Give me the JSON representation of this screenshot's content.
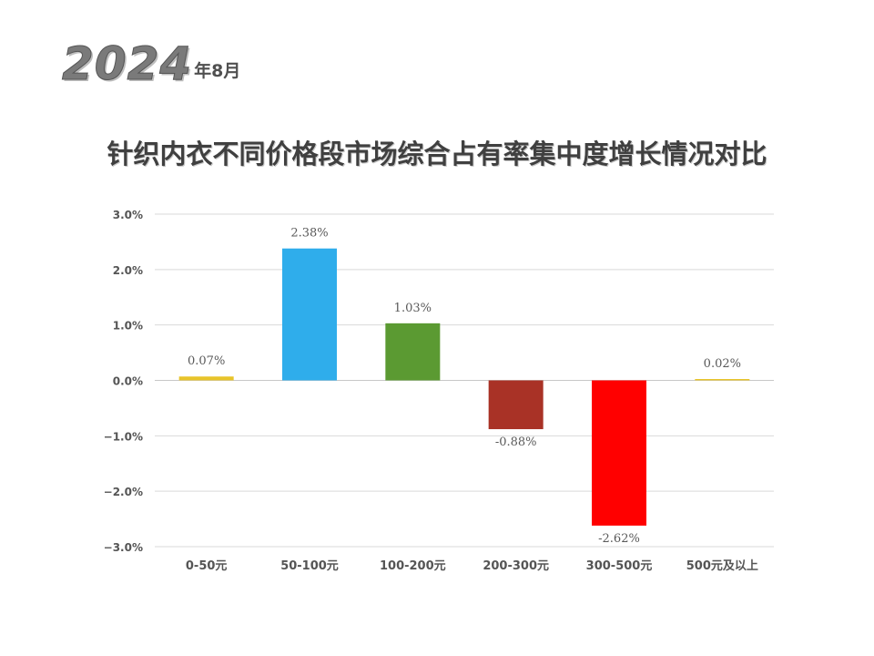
{
  "header": {
    "year": "2024",
    "month": "年8月",
    "title": "针织内衣不同价格段市场综合占有率集中度增长情况对比"
  },
  "chart_data": {
    "type": "bar",
    "categories": [
      "0-50元",
      "50-100元",
      "100-200元",
      "200-300元",
      "300-500元",
      "500元及以上"
    ],
    "values": [
      0.07,
      2.38,
      1.03,
      -0.88,
      -2.62,
      0.02
    ],
    "data_labels": [
      "0.07%",
      "2.38%",
      "1.03%",
      "-0.88%",
      "-2.62%",
      "0.02%"
    ],
    "colors": [
      "#E8C42A",
      "#2FADEB",
      "#5B9A32",
      "#A93226",
      "#FF0000",
      "#E8C42A"
    ],
    "ylim": [
      -3.0,
      3.0
    ],
    "yticks": [
      3.0,
      2.0,
      1.0,
      0.0,
      -1.0,
      -2.0,
      -3.0
    ],
    "ytick_labels": [
      "3.0%",
      "2.0%",
      "1.0%",
      "0.0%",
      "−1.0%",
      "−2.0%",
      "−3.0%"
    ],
    "grid": true,
    "xlabel": "",
    "ylabel": ""
  }
}
